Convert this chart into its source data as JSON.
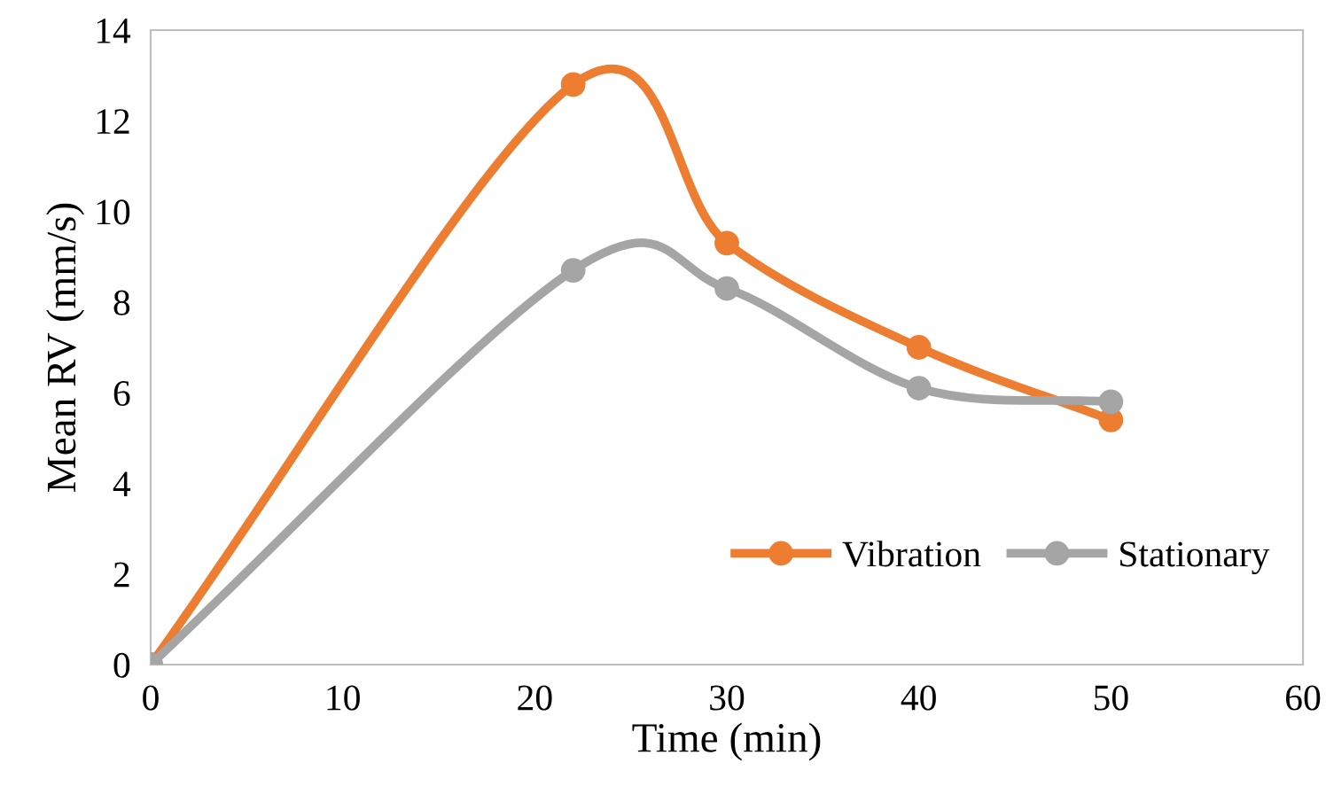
{
  "chart_data": {
    "type": "line",
    "xlabel": "Time (min)",
    "ylabel": "Mean RV (mm/s)",
    "series": [
      {
        "name": "Vibration",
        "color": "#ed7d31",
        "x": [
          0,
          22,
          30,
          40,
          50
        ],
        "values": [
          0,
          12.8,
          9.3,
          7.0,
          5.4
        ]
      },
      {
        "name": "Stationary",
        "color": "#a5a5a5",
        "x": [
          0,
          22,
          30,
          40,
          50
        ],
        "values": [
          0,
          8.7,
          8.3,
          6.1,
          5.8
        ]
      }
    ],
    "xlim": [
      0,
      60
    ],
    "xticks": [
      0,
      10,
      20,
      30,
      40,
      50,
      60
    ],
    "ylim": [
      0,
      14
    ],
    "yticks": [
      0,
      2,
      4,
      6,
      8,
      10,
      12,
      14
    ],
    "grid": false,
    "legend": "bottom right",
    "marker": "circle",
    "line_style": "solid"
  }
}
